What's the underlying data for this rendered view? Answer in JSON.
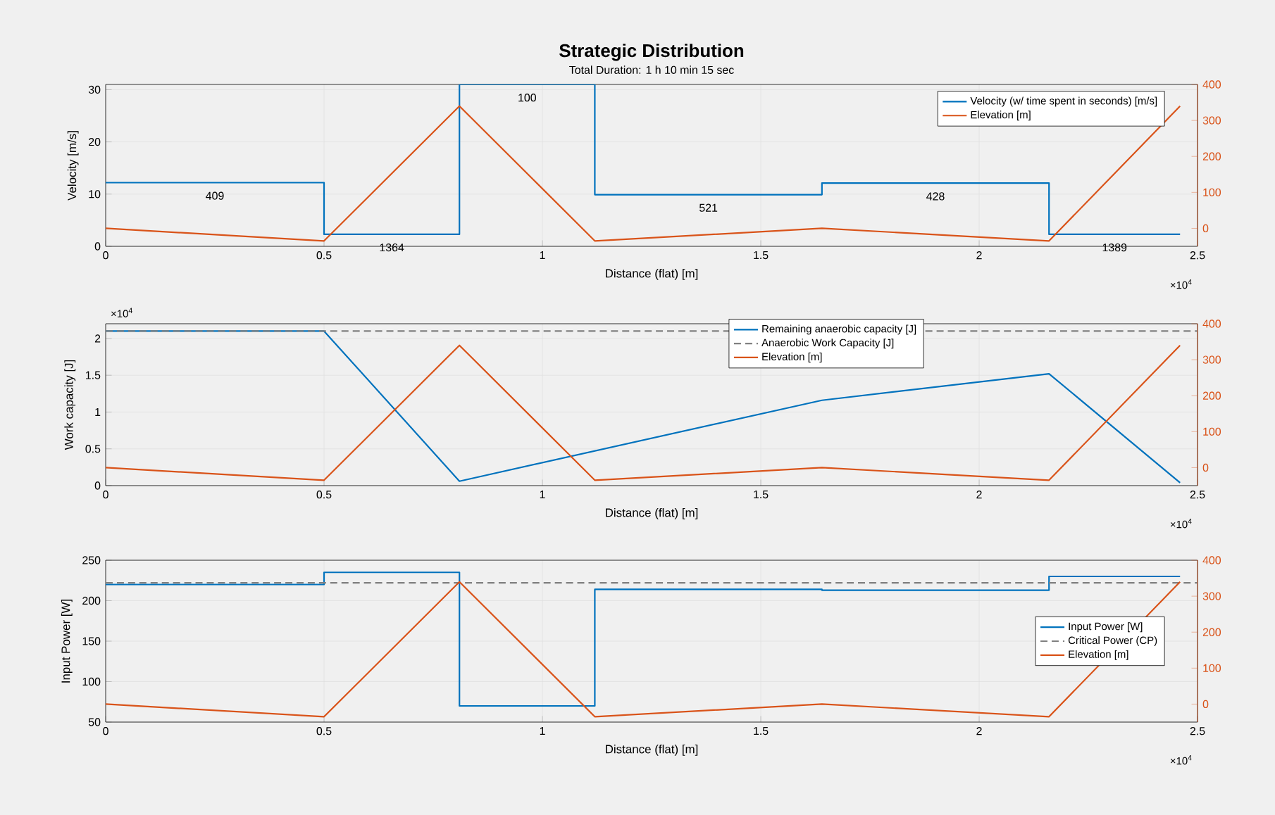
{
  "chart_data": [
    {
      "type": "line",
      "title": "Strategic Distribution",
      "subtitle": "Total Duration: 1 h 10 min 15 sec",
      "xlabel": "Distance (flat) [m]",
      "ylabel": "Velocity [m/s]",
      "xlim": [
        0,
        2.5
      ],
      "xticks": [
        0,
        0.5,
        1,
        1.5,
        2,
        2.5
      ],
      "ylim": [
        0,
        31
      ],
      "yticks": [
        0,
        10,
        20,
        30
      ],
      "y2lim": [
        -50,
        400
      ],
      "y2ticks": [
        0,
        100,
        200,
        300,
        400
      ],
      "grid": true,
      "legend": "top right",
      "series": [
        {
          "name": "Velocity (w/ time spent in seconds) [m/s]",
          "type": "step",
          "color": "#0072bd",
          "x": [
            0,
            0.5,
            0.81,
            1.12,
            1.64,
            2.16,
            2.46
          ],
          "values": [
            12.2,
            2.3,
            31,
            9.9,
            12.1,
            2.3,
            2.3
          ]
        },
        {
          "name": "Elevation [m]",
          "axis": "y2",
          "color": "#d95319",
          "x": [
            0,
            0.5,
            0.81,
            1.12,
            1.64,
            2.16,
            2.46
          ],
          "values": [
            0,
            -35,
            340,
            -35,
            0,
            -35,
            340
          ]
        }
      ],
      "annotations": [
        "×10$^{4}$",
        {
          "text": "409",
          "x": 0.25,
          "y": 12.2
        },
        {
          "text": "1364",
          "x": 0.655,
          "y": 2.3
        },
        {
          "text": "100",
          "x": 0.965,
          "y": 31
        },
        {
          "text": "521",
          "x": 1.38,
          "y": 9.9
        },
        {
          "text": "428",
          "x": 1.9,
          "y": 12.1
        },
        {
          "text": "1389",
          "x": 2.31,
          "y": 2.3
        }
      ]
    },
    {
      "type": "line",
      "xlabel": "Distance (flat) [m]",
      "ylabel": "Work capacity [J]",
      "xlim": [
        0,
        2.5
      ],
      "xticks": [
        0,
        0.5,
        1,
        1.5,
        2,
        2.5
      ],
      "ylim": [
        0,
        2.2
      ],
      "yticks": [
        0,
        0.5,
        1,
        1.5,
        2
      ],
      "y2lim": [
        -50,
        400
      ],
      "y2ticks": [
        0,
        100,
        200,
        300,
        400
      ],
      "grid": true,
      "legend": "top",
      "series": [
        {
          "name": "Remaining anaerobic capacity [J]",
          "color": "#0072bd",
          "x": [
            0,
            0.5,
            0.81,
            1.64,
            2.16,
            2.46
          ],
          "values": [
            2.1,
            2.1,
            0.06,
            1.16,
            1.52,
            0.04
          ]
        },
        {
          "name": "Anaerobic Work Capacity [J]",
          "line_style": "dashed",
          "color": "#808080",
          "x": [
            0,
            2.5
          ],
          "values": [
            2.1,
            2.1
          ]
        },
        {
          "name": "Elevation [m]",
          "axis": "y2",
          "color": "#d95319",
          "x": [
            0,
            0.5,
            0.81,
            1.12,
            1.64,
            2.16,
            2.46
          ],
          "values": [
            0,
            -35,
            340,
            -35,
            0,
            -35,
            340
          ]
        }
      ],
      "annotations": [
        "×10$^{4}$",
        "×10$^{4}$"
      ]
    },
    {
      "type": "line",
      "xlabel": "Distance (flat) [m]",
      "ylabel": "Input Power [W]",
      "xlim": [
        0,
        2.5
      ],
      "xticks": [
        0,
        0.5,
        1,
        1.5,
        2,
        2.5
      ],
      "ylim": [
        50,
        250
      ],
      "yticks": [
        50,
        100,
        150,
        200,
        250
      ],
      "y2lim": [
        -50,
        400
      ],
      "y2ticks": [
        0,
        100,
        200,
        300,
        400
      ],
      "grid": true,
      "legend": "right",
      "series": [
        {
          "name": "Input Power [W]",
          "type": "step",
          "color": "#0072bd",
          "x": [
            0,
            0.5,
            0.81,
            1.12,
            1.64,
            2.16,
            2.46
          ],
          "values": [
            220,
            235,
            70,
            214,
            213,
            230,
            230
          ]
        },
        {
          "name": "Critical Power (CP)",
          "line_style": "dashed",
          "color": "#808080",
          "x": [
            0,
            2.5
          ],
          "values": [
            222,
            222
          ]
        },
        {
          "name": "Elevation [m]",
          "axis": "y2",
          "color": "#d95319",
          "x": [
            0,
            0.5,
            0.81,
            1.12,
            1.64,
            2.16,
            2.46
          ],
          "values": [
            0,
            -35,
            340,
            -35,
            0,
            -35,
            340
          ]
        }
      ],
      "annotations": [
        "×10$^{4}$"
      ]
    }
  ]
}
